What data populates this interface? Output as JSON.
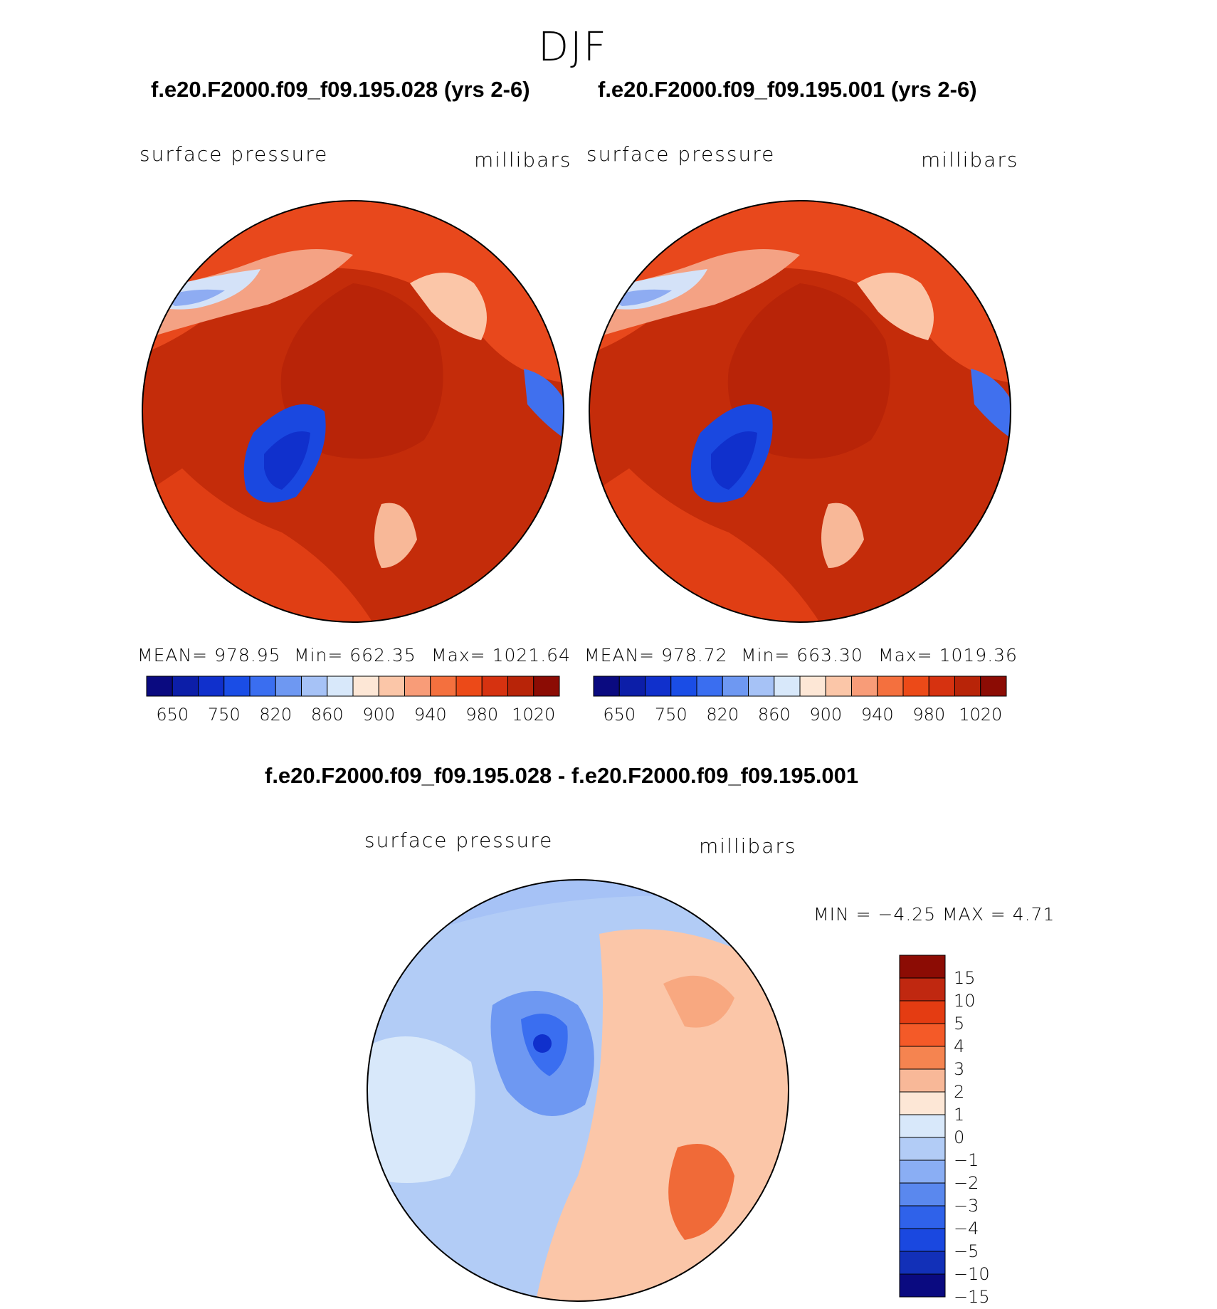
{
  "figure": {
    "season_title": "DJF",
    "diff_title": "f.e20.F2000.f09_f09.195.028 - f.e20.F2000.f09_f09.195.001"
  },
  "panels": [
    {
      "title": "f.e20.F2000.f09_f09.195.028 (yrs 2-6)",
      "left_label": "surface pressure",
      "right_label": "millibars",
      "stats": {
        "mean": "MEAN=  978.95",
        "min": "Min=  662.35",
        "max": "Max=  1021.64"
      }
    },
    {
      "title": "f.e20.F2000.f09_f09.195.001 (yrs 2-6)",
      "left_label": "surface pressure",
      "right_label": "millibars",
      "stats": {
        "mean": "MEAN=  978.72",
        "min": "Min=  663.30",
        "max": "Max=  1019.36"
      }
    }
  ],
  "diff_panel": {
    "left_label": "surface pressure",
    "right_label": "millibars",
    "minmax": "MIN  =    −4.25  MAX  =      4.71"
  },
  "colorbar_abs": {
    "colors": [
      "#0a0a80",
      "#0c1ea8",
      "#1030cc",
      "#1a4de6",
      "#3a6ef0",
      "#6e98f2",
      "#a6c2f6",
      "#d8e8fa",
      "#fde7d6",
      "#fbc6a8",
      "#f89c78",
      "#f4703e",
      "#ec4a18",
      "#d63210",
      "#b82408",
      "#8c0c04"
    ],
    "ticks": [
      "650",
      "750",
      "820",
      "860",
      "900",
      "940",
      "980",
      "1020"
    ]
  },
  "colorbar_diff": {
    "colors": [
      "#8c0c04",
      "#c02810",
      "#e43c12",
      "#f45a28",
      "#f58450",
      "#f8b898",
      "#fde7d6",
      "#d8e8fa",
      "#b2ccf6",
      "#8aaef4",
      "#5a88ee",
      "#2f62ea",
      "#1a48e0",
      "#1230b8",
      "#0a0a80"
    ],
    "ticks": [
      "15",
      "10",
      "5",
      "4",
      "3",
      "2",
      "1",
      "0",
      "−1",
      "−2",
      "−3",
      "−4",
      "−5",
      "−10",
      "−15"
    ]
  }
}
